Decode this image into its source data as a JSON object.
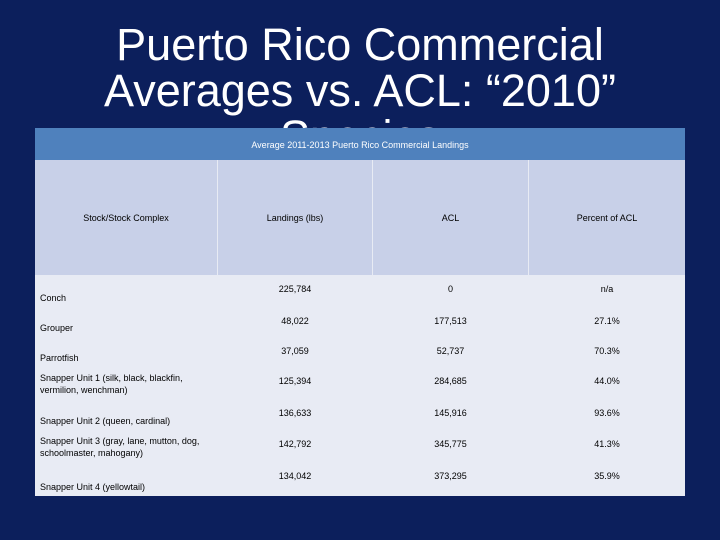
{
  "slide": {
    "title_line1": "Puerto Rico Commercial",
    "title_line2": "Averages vs. ACL: “2010”",
    "title_line3": "Species"
  },
  "table": {
    "caption": "Average 2011-2013 Puerto Rico Commercial Landings",
    "headers": [
      "Stock/Stock Complex",
      "Landings (lbs)",
      "ACL",
      "Percent of ACL"
    ],
    "rows": [
      {
        "stock": "Conch",
        "landings": "225,784",
        "acl": "0",
        "percent": "n/a"
      },
      {
        "stock": "Grouper",
        "landings": "48,022",
        "acl": "177,513",
        "percent": "27.1%"
      },
      {
        "stock": "Parrotfish",
        "landings": "37,059",
        "acl": "52,737",
        "percent": "70.3%"
      },
      {
        "stock": "Snapper Unit 1 (silk, black, blackfin, vermilion, wenchman)",
        "landings": "125,394",
        "acl": "284,685",
        "percent": "44.0%"
      },
      {
        "stock": "Snapper Unit 2 (queen, cardinal)",
        "landings": "136,633",
        "acl": "145,916",
        "percent": "93.6%"
      },
      {
        "stock": "Snapper Unit 3 (gray, lane, mutton, dog, schoolmaster, mahogany)",
        "landings": "142,792",
        "acl": "345,775",
        "percent": "41.3%"
      },
      {
        "stock": "Snapper Unit 4 (yellowtail)",
        "landings": "134,042",
        "acl": "373,295",
        "percent": "35.9%"
      }
    ]
  }
}
